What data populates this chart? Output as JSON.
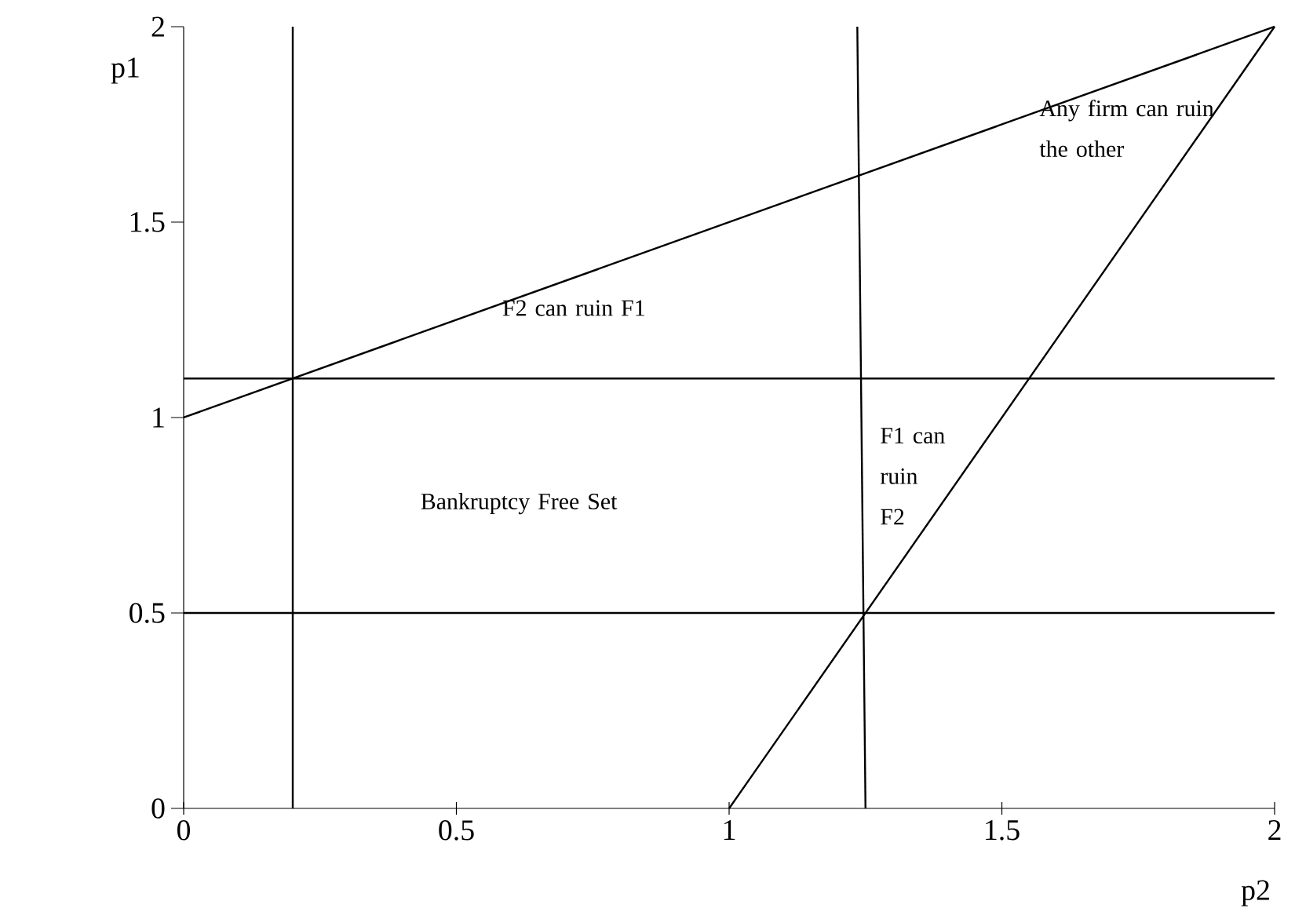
{
  "chart_data": {
    "type": "line",
    "xlabel": "p2",
    "ylabel": "p1",
    "xlim": [
      0,
      2
    ],
    "ylim": [
      0,
      2
    ],
    "xticks": [
      0,
      0.5,
      1,
      1.5,
      2
    ],
    "yticks": [
      0,
      0.5,
      1,
      1.5,
      2
    ],
    "grid": false,
    "marker": "none",
    "line_style": "solid",
    "series": [
      {
        "color": "#000000",
        "x": [
          0,
          2
        ],
        "values": [
          1,
          2
        ]
      },
      {
        "color": "#000000",
        "x": [
          1,
          2
        ],
        "values": [
          0,
          2
        ]
      },
      {
        "color": "#000000",
        "x": [
          1.25,
          1.235
        ],
        "values": [
          0,
          2
        ]
      }
    ],
    "ref_lines": [
      {
        "axis": "y",
        "value": 1.1,
        "color": "#000000"
      },
      {
        "axis": "y",
        "value": 0.5,
        "color": "#000000"
      },
      {
        "axis": "x",
        "value": 0.2,
        "color": "#000000"
      }
    ],
    "annotations": [
      "Any firm can ruin the other",
      "F2  can ruin F1",
      "F1 can ruin F2",
      "Bankruptcy Free Set"
    ]
  }
}
